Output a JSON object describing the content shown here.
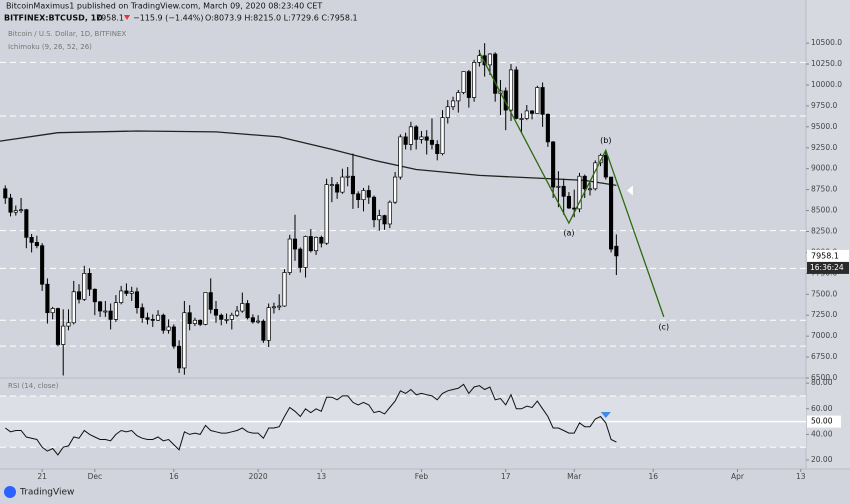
{
  "header": {
    "publisher": "BitcoinMaximus1 published on TradingView.com, March 09, 2020 08:23:40 CET",
    "symbol": "BITFINEX:BTCUSD, 1D",
    "last": "7958.1",
    "change": "−115.9 (−1.44%)",
    "ohlc": "O:8073.9 H:8215.0 L:7729.6 C:7958.1",
    "pair": "Bitcoin / U.S. Dollar, 1D, BITFINEX",
    "brand": "TradingView"
  },
  "chart_data": {
    "type": "candlestick",
    "candles": [
      [
        8760,
        8800,
        8580,
        8650
      ],
      [
        8650,
        8700,
        8430,
        8480
      ],
      [
        8480,
        8560,
        8440,
        8500
      ],
      [
        8500,
        8650,
        8470,
        8510
      ],
      [
        8510,
        8520,
        8050,
        8180
      ],
      [
        8180,
        8220,
        8000,
        8120
      ],
      [
        8120,
        8200,
        8050,
        8080
      ],
      [
        8080,
        8110,
        7540,
        7620
      ],
      [
        7620,
        7690,
        7150,
        7280
      ],
      [
        7280,
        7350,
        7200,
        7330
      ],
      [
        7330,
        7340,
        6880,
        6900
      ],
      [
        6900,
        7320,
        6530,
        7120
      ],
      [
        7120,
        7320,
        7070,
        7160
      ],
      [
        7160,
        7660,
        7140,
        7530
      ],
      [
        7530,
        7620,
        7390,
        7440
      ],
      [
        7440,
        7840,
        7420,
        7750
      ],
      [
        7750,
        7810,
        7480,
        7560
      ],
      [
        7560,
        7570,
        7250,
        7410
      ],
      [
        7410,
        7420,
        7230,
        7300
      ],
      [
        7300,
        7420,
        7230,
        7300
      ],
      [
        7300,
        7390,
        7080,
        7200
      ],
      [
        7200,
        7490,
        7170,
        7400
      ],
      [
        7400,
        7600,
        7380,
        7540
      ],
      [
        7540,
        7630,
        7480,
        7510
      ],
      [
        7510,
        7590,
        7420,
        7530
      ],
      [
        7530,
        7580,
        7270,
        7340
      ],
      [
        7340,
        7390,
        7160,
        7220
      ],
      [
        7220,
        7280,
        7140,
        7200
      ],
      [
        7200,
        7260,
        7110,
        7190
      ],
      [
        7190,
        7310,
        7180,
        7250
      ],
      [
        7250,
        7270,
        7030,
        7070
      ],
      [
        7070,
        7200,
        7030,
        7110
      ],
      [
        7110,
        7140,
        6850,
        6880
      ],
      [
        6880,
        6950,
        6560,
        6620
      ],
      [
        6620,
        7420,
        6540,
        7280
      ],
      [
        7280,
        7370,
        7070,
        7150
      ],
      [
        7150,
        7220,
        7120,
        7190
      ],
      [
        7190,
        7200,
        7120,
        7140
      ],
      [
        7140,
        7520,
        7130,
        7520
      ],
      [
        7520,
        7690,
        7270,
        7320
      ],
      [
        7320,
        7420,
        7160,
        7250
      ],
      [
        7250,
        7270,
        7130,
        7200
      ],
      [
        7200,
        7270,
        7150,
        7200
      ],
      [
        7200,
        7280,
        7080,
        7250
      ],
      [
        7250,
        7360,
        7230,
        7300
      ],
      [
        7300,
        7520,
        7280,
        7390
      ],
      [
        7390,
        7430,
        7200,
        7220
      ],
      [
        7220,
        7260,
        7150,
        7170
      ],
      [
        7170,
        7250,
        7150,
        7180
      ],
      [
        7180,
        7200,
        6920,
        6950
      ],
      [
        6950,
        7390,
        6870,
        7340
      ],
      [
        7340,
        7400,
        7270,
        7350
      ],
      [
        7350,
        7500,
        7310,
        7360
      ],
      [
        7360,
        7800,
        7350,
        7760
      ],
      [
        7760,
        8210,
        7730,
        8160
      ],
      [
        8160,
        8450,
        7900,
        8040
      ],
      [
        8040,
        8060,
        7760,
        7820
      ],
      [
        7820,
        8200,
        7700,
        8190
      ],
      [
        8190,
        8280,
        8000,
        8020
      ],
      [
        8020,
        8190,
        7970,
        8180
      ],
      [
        8180,
        8200,
        8060,
        8110
      ],
      [
        8110,
        8880,
        8090,
        8810
      ],
      [
        8810,
        8900,
        8600,
        8810
      ],
      [
        8810,
        8840,
        8640,
        8720
      ],
      [
        8720,
        9000,
        8700,
        8900
      ],
      [
        8900,
        9020,
        8790,
        8910
      ],
      [
        8910,
        9180,
        8520,
        8700
      ],
      [
        8700,
        8730,
        8530,
        8630
      ],
      [
        8630,
        8770,
        8490,
        8740
      ],
      [
        8740,
        8800,
        8580,
        8660
      ],
      [
        8660,
        8680,
        8300,
        8390
      ],
      [
        8390,
        8510,
        8260,
        8440
      ],
      [
        8440,
        8450,
        8270,
        8340
      ],
      [
        8340,
        8620,
        8290,
        8600
      ],
      [
        8600,
        8960,
        8580,
        8900
      ],
      [
        8900,
        9410,
        8870,
        9380
      ],
      [
        9380,
        9430,
        9230,
        9290
      ],
      [
        9290,
        9560,
        9220,
        9500
      ],
      [
        9500,
        9520,
        9230,
        9350
      ],
      [
        9350,
        9450,
        9300,
        9380
      ],
      [
        9380,
        9460,
        9170,
        9340
      ],
      [
        9340,
        9600,
        9230,
        9290
      ],
      [
        9290,
        9340,
        9100,
        9180
      ],
      [
        9180,
        9700,
        9160,
        9610
      ],
      [
        9610,
        9820,
        9540,
        9740
      ],
      [
        9740,
        9860,
        9700,
        9810
      ],
      [
        9810,
        9940,
        9670,
        9910
      ],
      [
        9910,
        10160,
        9890,
        10160
      ],
      [
        10160,
        10180,
        9730,
        9850
      ],
      [
        9850,
        10300,
        9800,
        10270
      ],
      [
        10270,
        10420,
        10220,
        10350
      ],
      [
        10350,
        10500,
        10100,
        10240
      ],
      [
        10240,
        10380,
        10120,
        10370
      ],
      [
        10370,
        10390,
        9800,
        9900
      ],
      [
        9900,
        10060,
        9640,
        9930
      ],
      [
        9930,
        9970,
        9460,
        9700
      ],
      [
        9700,
        10250,
        9570,
        10180
      ],
      [
        10180,
        10220,
        9590,
        9600
      ],
      [
        9600,
        9660,
        9420,
        9600
      ],
      [
        9600,
        9760,
        9580,
        9690
      ],
      [
        9690,
        9700,
        9590,
        9660
      ],
      [
        9660,
        9990,
        9660,
        9970
      ],
      [
        9970,
        10030,
        9500,
        9650
      ],
      [
        9650,
        9660,
        9260,
        9320
      ],
      [
        9320,
        9330,
        8650,
        8780
      ],
      [
        8780,
        8970,
        8540,
        8790
      ],
      [
        8790,
        8880,
        8450,
        8670
      ],
      [
        8670,
        8720,
        8520,
        8530
      ],
      [
        8530,
        8750,
        8420,
        8520
      ],
      [
        8520,
        8950,
        8480,
        8910
      ],
      [
        8910,
        8930,
        8650,
        8760
      ],
      [
        8760,
        8840,
        8680,
        8760
      ],
      [
        8760,
        9100,
        8740,
        9070
      ],
      [
        9070,
        9180,
        9030,
        9160
      ],
      [
        9160,
        9200,
        8870,
        8900
      ],
      [
        8900,
        8900,
        8000,
        8040
      ],
      [
        8073.9,
        8215,
        7729.6,
        7958.1
      ]
    ],
    "up_color": "#ffffff",
    "down_color": "#000000",
    "xlim": [
      -1,
      152
    ],
    "xticks": [
      {
        "value": 7,
        "label": "21"
      },
      {
        "value": 17,
        "label": "Dec"
      },
      {
        "value": 32,
        "label": "16"
      },
      {
        "value": 48,
        "label": "2020"
      },
      {
        "value": 60,
        "label": "13"
      },
      {
        "value": 79,
        "label": "Feb"
      },
      {
        "value": 95,
        "label": "17"
      },
      {
        "value": 108,
        "label": "Mar"
      },
      {
        "value": 123,
        "label": "16"
      },
      {
        "value": 139,
        "label": "Apr"
      },
      {
        "value": 151,
        "label": "13"
      }
    ],
    "ylim": [
      6500,
      11015
    ],
    "yticks": [
      {
        "value": 6500,
        "label": "6500.0"
      },
      {
        "value": 6750,
        "label": "6750.0"
      },
      {
        "value": 7000,
        "label": "7000.0"
      },
      {
        "value": 7250,
        "label": "7250.0"
      },
      {
        "value": 7500,
        "label": "7500.0"
      },
      {
        "value": 7750,
        "label": "7750.0"
      },
      {
        "value": 8000,
        "label": "8000.0"
      },
      {
        "value": 8250,
        "label": "8250.0"
      },
      {
        "value": 8500,
        "label": "8500.0"
      },
      {
        "value": 8750,
        "label": "8750.0"
      },
      {
        "value": 9000,
        "label": "9000.0"
      },
      {
        "value": 9250,
        "label": "9250.0"
      },
      {
        "value": 9500,
        "label": "9500.0"
      },
      {
        "value": 9750,
        "label": "9750.0"
      },
      {
        "value": 10000,
        "label": "10000.0"
      },
      {
        "value": 10250,
        "label": "10250.0"
      },
      {
        "value": 10500,
        "label": "10500.0"
      }
    ],
    "countdown": "16:36:24",
    "levels": [
      10270,
      9630,
      8260,
      7810,
      7190,
      6880
    ],
    "overlay": {
      "name": "Ichimoku (9, 26, 52, 26)",
      "color": "#222222",
      "points": [
        [
          -1,
          9330
        ],
        [
          10,
          9430
        ],
        [
          25,
          9450
        ],
        [
          40,
          9440
        ],
        [
          52,
          9380
        ],
        [
          62,
          9230
        ],
        [
          70,
          9100
        ],
        [
          78,
          8990
        ],
        [
          90,
          8920
        ],
        [
          100,
          8890
        ],
        [
          110,
          8860
        ],
        [
          116,
          8800
        ]
      ]
    },
    "wave": {
      "color": "#2e6b10",
      "points": [
        [
          90,
          10390
        ],
        [
          107,
          8350
        ],
        [
          114,
          9220
        ],
        [
          125,
          7230
        ]
      ],
      "labels": [
        "(a)",
        "(b)",
        "(c)"
      ]
    },
    "rsi": {
      "name": "RSI (14, close)",
      "color": "#111111",
      "ylim": [
        13,
        84
      ],
      "yticks": [
        {
          "value": 20,
          "label": "20.00"
        },
        {
          "value": 40,
          "label": "40.00"
        },
        {
          "value": 60,
          "label": "60.00"
        },
        {
          "value": 80,
          "label": "80.00"
        }
      ],
      "midline": {
        "value": 50,
        "label": "50.00"
      },
      "bands": [
        70,
        30
      ],
      "signal_index": 114,
      "values": [
        45,
        42,
        43,
        43,
        38,
        37,
        36,
        30,
        27,
        29,
        24,
        30,
        31,
        38,
        37,
        43,
        40,
        38,
        36,
        36,
        35,
        40,
        43,
        42,
        43,
        39,
        37,
        36,
        36,
        38,
        35,
        36,
        32,
        28,
        42,
        40,
        41,
        40,
        47,
        43,
        42,
        41,
        41,
        42,
        43,
        45,
        42,
        41,
        41,
        37,
        45,
        45,
        46,
        54,
        61,
        58,
        54,
        60,
        57,
        60,
        58,
        69,
        69,
        67,
        70,
        70,
        65,
        63,
        65,
        63,
        57,
        58,
        56,
        61,
        66,
        74,
        72,
        75,
        71,
        72,
        71,
        70,
        67,
        72,
        74,
        75,
        76,
        79,
        72,
        77,
        78,
        75,
        77,
        67,
        68,
        63,
        71,
        60,
        60,
        62,
        61,
        66,
        60,
        54,
        45,
        45,
        43,
        41,
        41,
        49,
        46,
        46,
        52,
        54,
        49,
        36,
        34
      ]
    }
  }
}
